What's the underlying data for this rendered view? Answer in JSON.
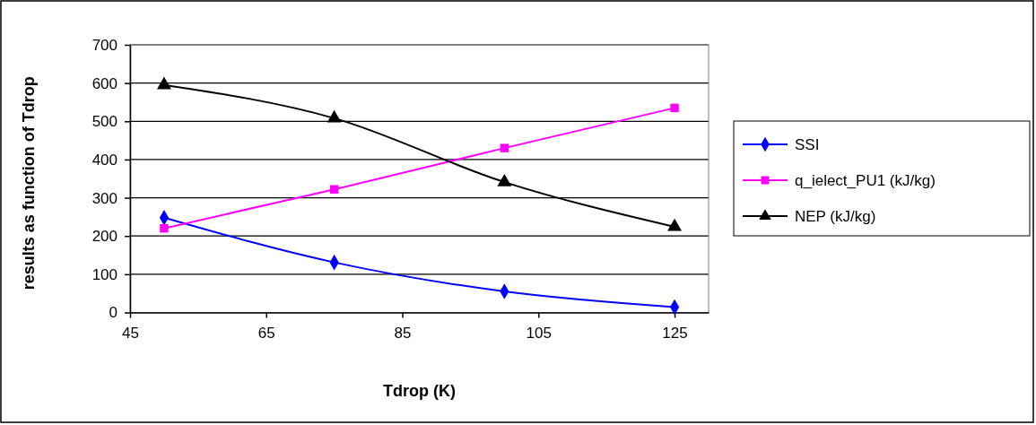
{
  "chart_data": {
    "type": "line",
    "xlabel": "Tdrop (K)",
    "ylabel": "results as function of Tdrop",
    "x": [
      50,
      75,
      100,
      125
    ],
    "xlim": [
      45,
      130
    ],
    "xticks": [
      45,
      65,
      85,
      105,
      125
    ],
    "ylim": [
      0,
      700
    ],
    "yticks": [
      0,
      100,
      200,
      300,
      400,
      500,
      600,
      700
    ],
    "grid": "y",
    "legend": "right",
    "series": [
      {
        "name": "SSI",
        "color": "#0000ff",
        "marker": "diamond",
        "values": [
          248,
          131,
          55,
          14
        ]
      },
      {
        "name": "q_ielect_PU1 (kJ/kg)",
        "color": "#ff00ff",
        "marker": "square",
        "values": [
          220,
          322,
          430,
          535
        ]
      },
      {
        "name": "NEP (kJ/kg)",
        "color": "#000000",
        "marker": "triangle",
        "values": [
          595,
          508,
          341,
          224
        ]
      }
    ]
  }
}
